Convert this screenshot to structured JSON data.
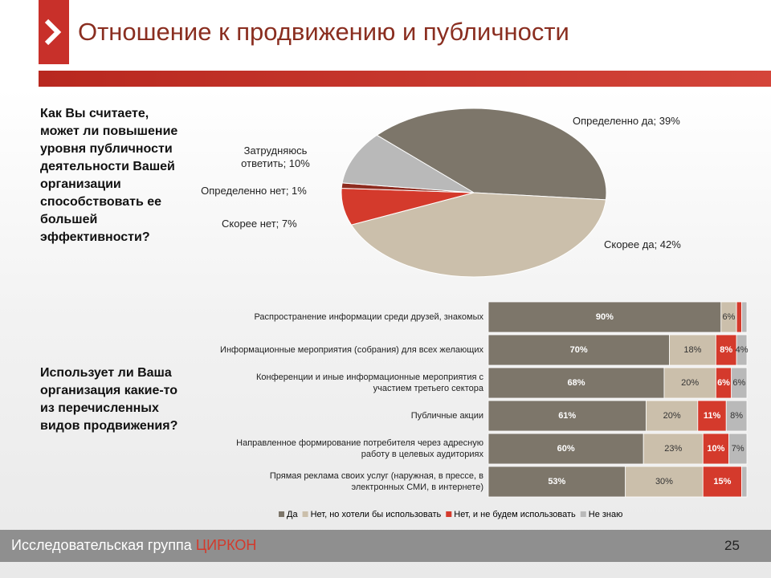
{
  "header": {
    "title": "Отношение к продвижению и публичности"
  },
  "questions": [
    "Как Вы считаете, может ли повышение уровня публичности деятельности Вашей организации способствовать ее большей эффективности?",
    "Использует ли Ваша организация какие-то из перечисленных видов продвижения?"
  ],
  "footer": {
    "organization": "Исследовательская группа",
    "brand": "ЦИРКОН",
    "page_number": 25
  },
  "chart_data": [
    {
      "type": "pie",
      "labels": [
        "Определенно да; 39%",
        "Скорее да; 42%",
        "Скорее нет; 7%",
        "Определенно нет; 1%",
        "Затрудняюсь ответить; 10%"
      ],
      "values": [
        39,
        42,
        7,
        1,
        10
      ],
      "colors": [
        "#7d766a",
        "#cbbfab",
        "#d43a2c",
        "#8e2b1f",
        "#b9b9b9"
      ]
    },
    {
      "type": "stacked_barh",
      "categories": [
        "Распространение информации среди друзей, знакомых",
        "Информационные мероприятия (собрания) для всех желающих",
        "Конференции и иные информационные мероприятия с участием третьего сектора",
        "Публичные акции",
        "Направленное формирование потребителя через адресную работу в целевых аудиториях",
        "Прямая реклама своих услуг (наружная, в прессе, в электронных СМИ, в интернете)"
      ],
      "xlim": [
        0,
        100
      ],
      "legend": "bottom",
      "series": [
        {
          "name": "Да",
          "color": "#7d766a",
          "values": [
            90,
            70,
            68,
            61,
            60,
            53
          ],
          "value_labels": [
            "90%",
            "70%",
            "68%",
            "61%",
            "60%",
            "53%"
          ]
        },
        {
          "name": "Нет, но хотели бы использовать",
          "color": "#cbbfab",
          "values": [
            6,
            18,
            20,
            20,
            23,
            30
          ],
          "value_labels": [
            "6%",
            "18%",
            "20%",
            "20%",
            "23%",
            "30%"
          ]
        },
        {
          "name": "Нет, и не будем использовать",
          "color": "#d43a2c",
          "values": [
            2,
            8,
            6,
            11,
            10,
            15
          ],
          "value_labels": [
            null,
            "8%",
            "6%",
            "11%",
            "10%",
            "15%"
          ]
        },
        {
          "name": "Не знаю",
          "color": "#b9b9b9",
          "values": [
            2,
            4,
            6,
            8,
            7,
            2
          ],
          "value_labels": [
            null,
            "4%",
            "6%",
            "8%",
            "7%",
            null
          ]
        }
      ]
    }
  ]
}
